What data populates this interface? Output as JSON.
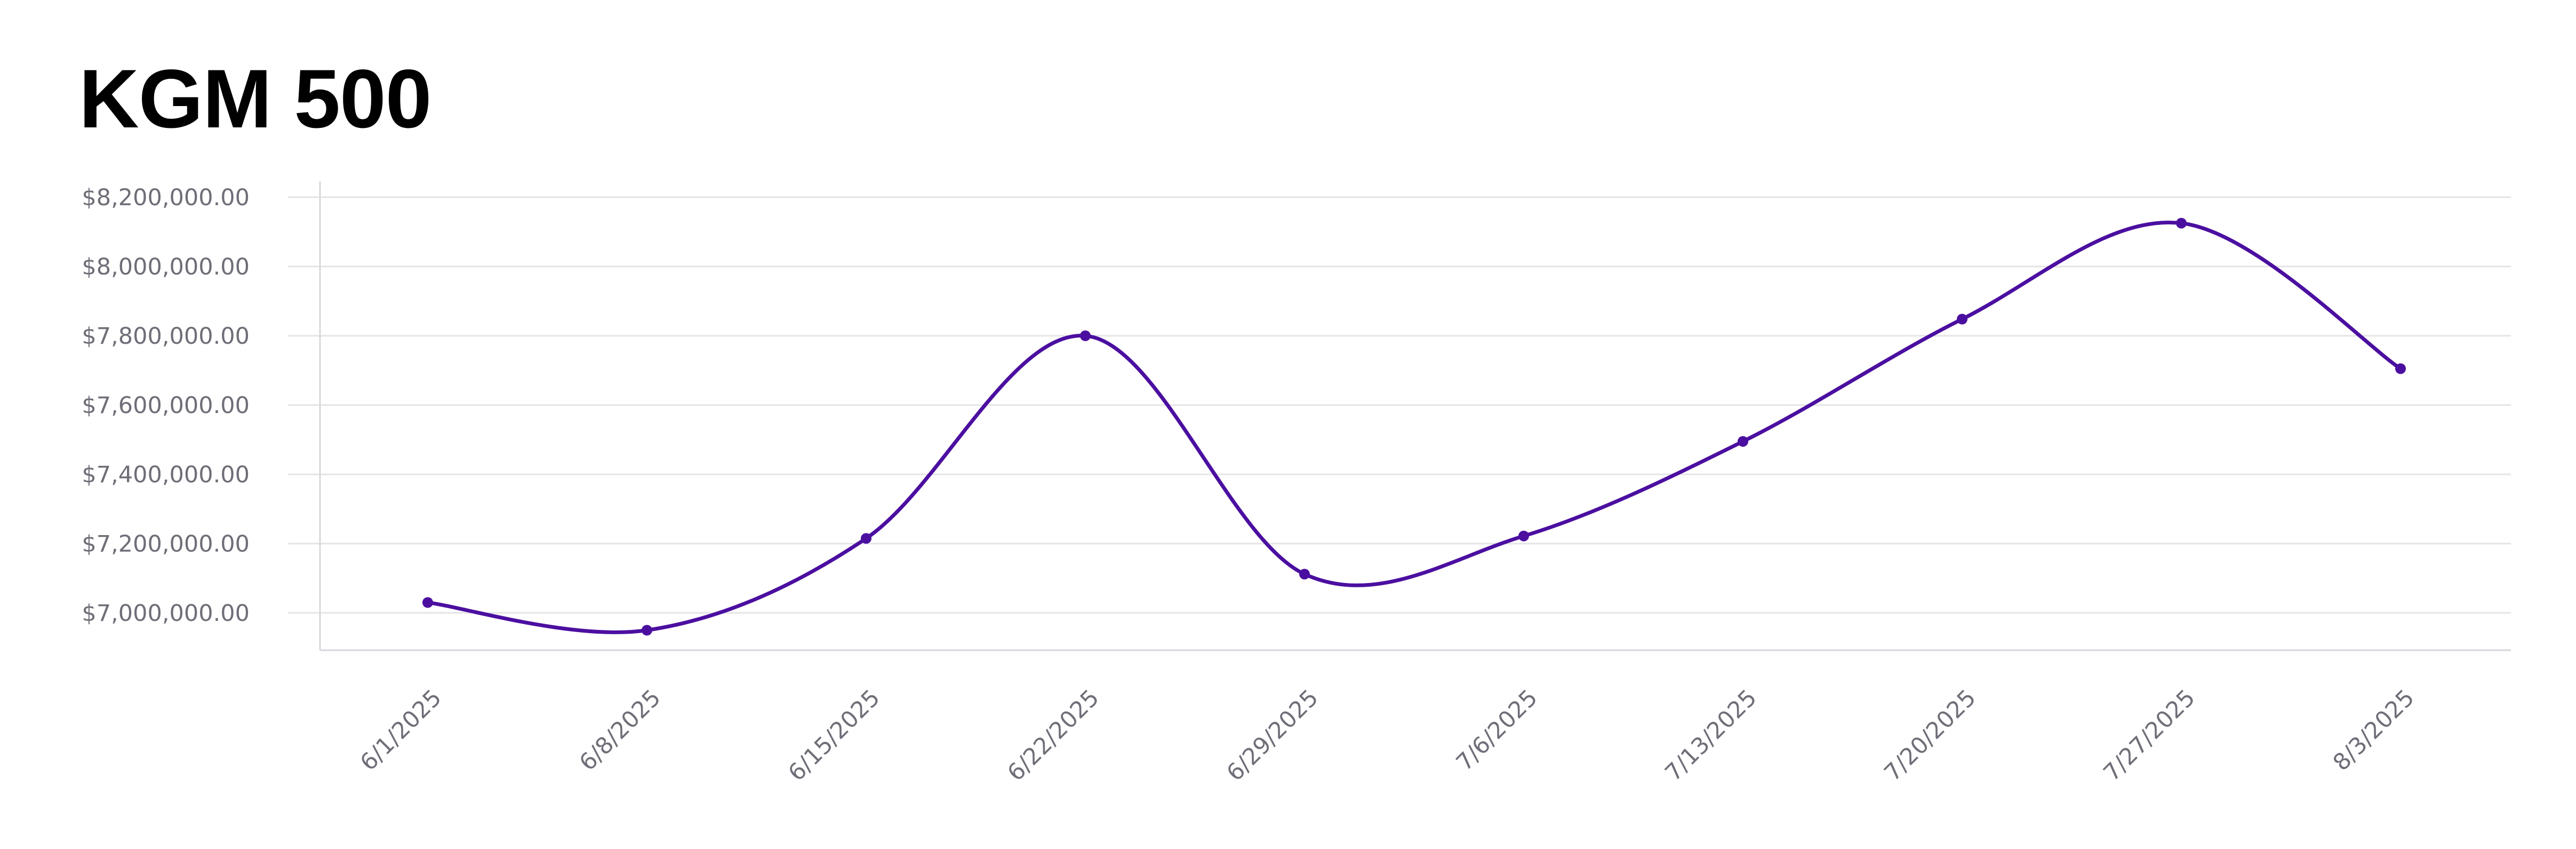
{
  "page": {
    "title": "KGM 500"
  },
  "chart_data": {
    "type": "line",
    "title": "KGM 500",
    "xlabel": "",
    "ylabel": "",
    "categories": [
      "6/1/2025",
      "6/8/2025",
      "6/15/2025",
      "6/22/2025",
      "6/29/2025",
      "7/6/2025",
      "7/13/2025",
      "7/20/2025",
      "7/27/2025",
      "8/3/2025"
    ],
    "series": [
      {
        "values": [
          7030000,
          6950000,
          7215000,
          7800000,
          7112000,
          7222000,
          7495000,
          7848000,
          8125000,
          7705000
        ]
      }
    ],
    "yticks": [
      7000000,
      7200000,
      7400000,
      7600000,
      7800000,
      8000000,
      8200000
    ],
    "ytick_labels": [
      "$7,000,000.00",
      "$7,200,000.00",
      "$7,400,000.00",
      "$7,600,000.00",
      "$7,800,000.00",
      "$8,000,000.00",
      "$8,200,000.00"
    ],
    "ylim": [
      6900000,
      8200000
    ],
    "grid": true,
    "legend": "none",
    "line_color": "#4b0fa0",
    "grid_color": "#e4e4e7",
    "axis_color": "#d6d6dc",
    "tick_label_color": "#6e6e78"
  }
}
